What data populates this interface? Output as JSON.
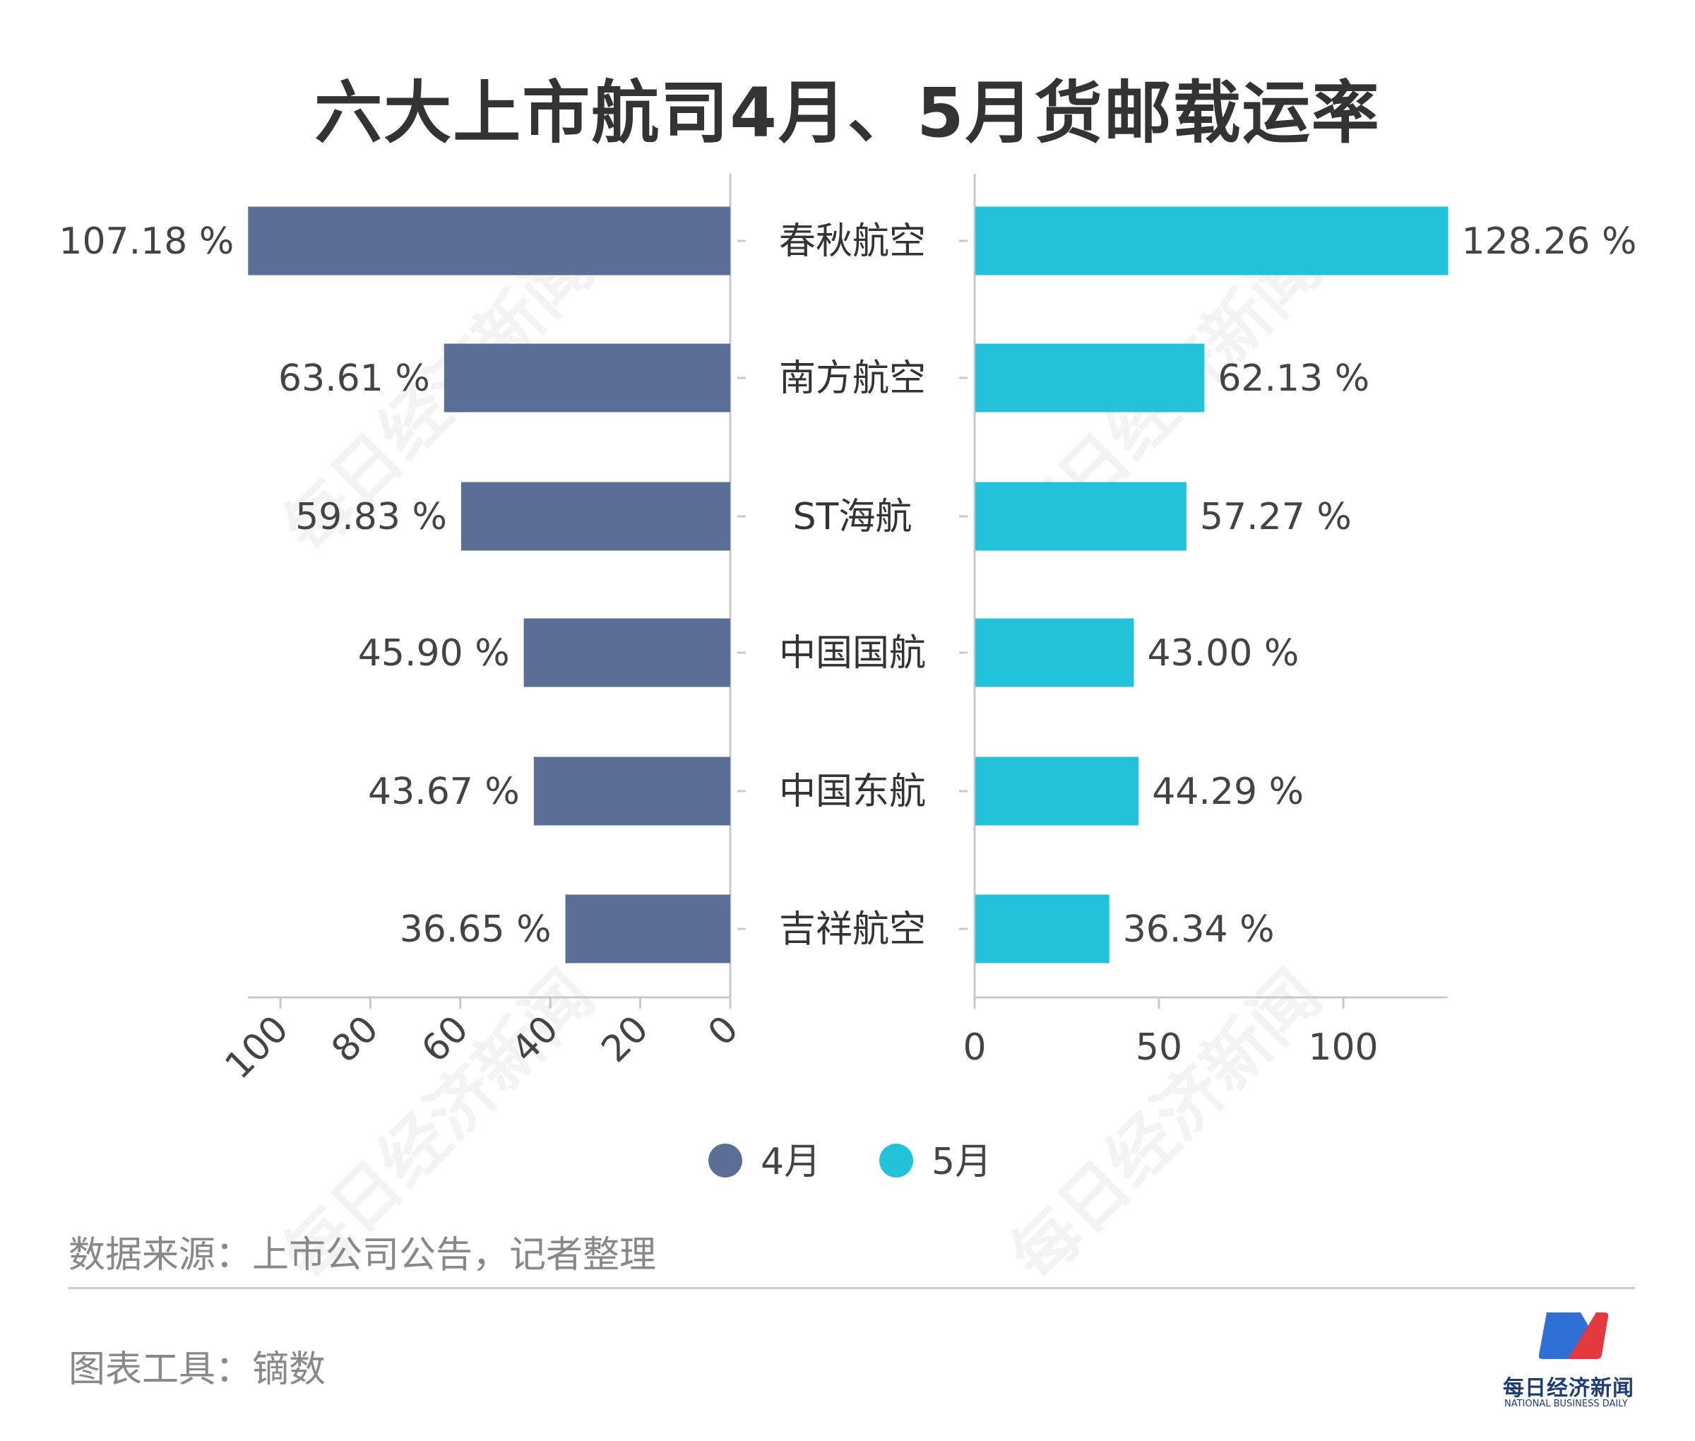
{
  "chart_data": {
    "type": "bar",
    "title": "六大上市航司4月、5月货邮载运率",
    "categories": [
      "春秋航空",
      "南方航空",
      "ST海航",
      "中国国航",
      "中国东航",
      "吉祥航空"
    ],
    "series": [
      {
        "name": "4月",
        "color": "#5b6e96",
        "values": [
          107.18,
          63.61,
          59.83,
          45.9,
          43.67,
          36.65
        ],
        "labels": [
          "107.18 %",
          "63.61 %",
          "59.83 %",
          "45.90 %",
          "43.67 %",
          "36.65 %"
        ],
        "axis_ticks": [
          "100",
          "80",
          "60",
          "40",
          "20",
          "0"
        ],
        "tick_values": [
          100,
          80,
          60,
          40,
          20,
          0
        ],
        "xlim": [
          0,
          107.18
        ],
        "direction": "left"
      },
      {
        "name": "5月",
        "color": "#22c3da",
        "values": [
          128.26,
          62.13,
          57.27,
          43.0,
          44.29,
          36.34
        ],
        "labels": [
          "128.26 %",
          "62.13 %",
          "57.27 %",
          "43.00 %",
          "44.29 %",
          "36.34 %"
        ],
        "axis_ticks": [
          "0",
          "50",
          "100"
        ],
        "tick_values": [
          0,
          50,
          100
        ],
        "xlim": [
          0,
          128.26
        ],
        "direction": "right"
      }
    ],
    "legend": "bottom",
    "grid": false
  },
  "footer": {
    "source": "数据来源：上市公司公告，记者整理",
    "tool": "图表工具：镝数"
  },
  "logo": {
    "cn": "每日经济新闻",
    "en": "NATIONAL BUSINESS DAILY"
  },
  "watermark": "每日经济新闻"
}
